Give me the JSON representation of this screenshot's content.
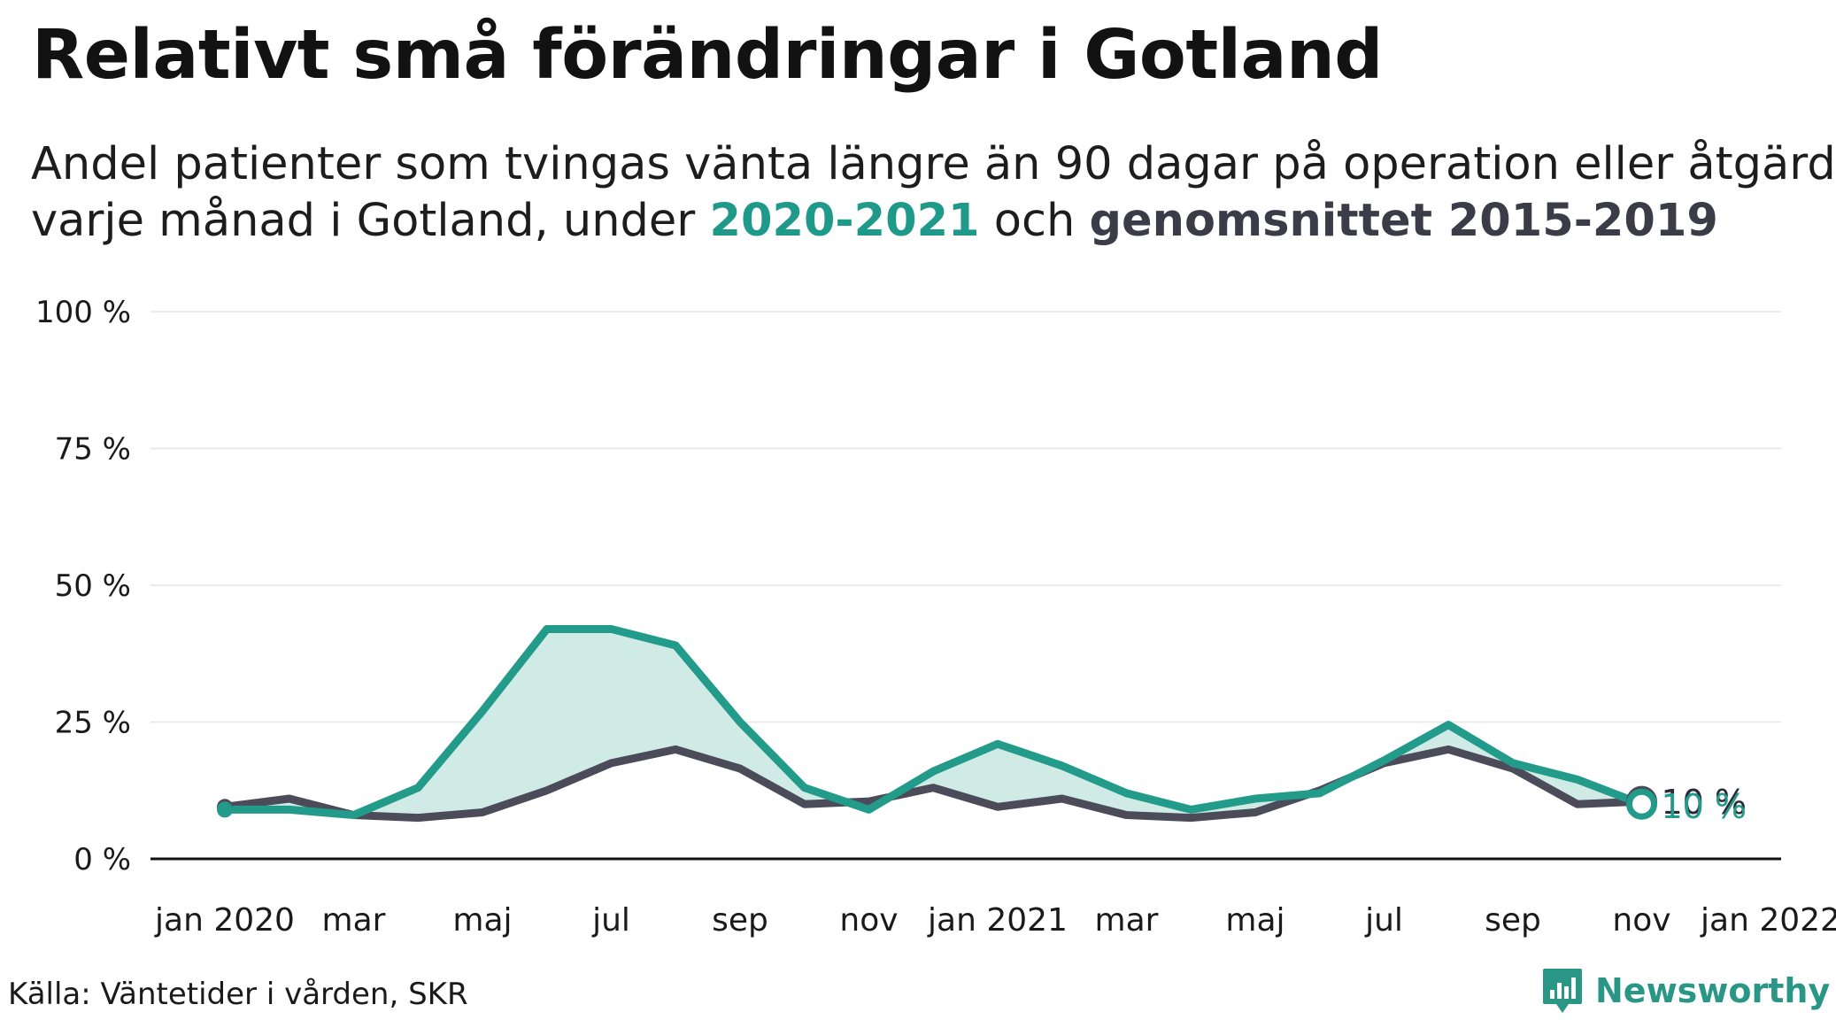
{
  "header": {
    "title": "Relativt små förändringar i Gotland",
    "subtitle_line1": "Andel patienter som tvingas vänta längre än 90 dagar på operation eller åtgärd",
    "subtitle_line2_pre": "varje månad i Gotland, under ",
    "subtitle_highlight_current": "2020-2021",
    "subtitle_line2_mid": " och ",
    "subtitle_highlight_average": "genomsnittet 2015-2019"
  },
  "footer": {
    "source": "Källa: Väntetider i vården, SKR",
    "brand": "Newsworthy"
  },
  "colors": {
    "current": "#229b8a",
    "average": "#4c4b59",
    "area": "#d0ebe6",
    "grid": "#e6e6e6",
    "axis": "#111111"
  },
  "chart_data": {
    "type": "line",
    "x_tick_labels": [
      "jan 2020",
      "mar",
      "maj",
      "jul",
      "sep",
      "nov",
      "jan 2021",
      "mar",
      "maj",
      "jul",
      "sep",
      "nov",
      "jan 2022"
    ],
    "y_tick_labels": [
      "0 %",
      "25 %",
      "50 %",
      "75 %",
      "100 %"
    ],
    "ylim": [
      0,
      100
    ],
    "y_ticks": [
      0,
      25,
      50,
      75,
      100
    ],
    "x": [
      "2020-01",
      "2020-02",
      "2020-03",
      "2020-04",
      "2020-05",
      "2020-06",
      "2020-07",
      "2020-08",
      "2020-09",
      "2020-10",
      "2020-11",
      "2020-12",
      "2021-01",
      "2021-02",
      "2021-03",
      "2021-04",
      "2021-05",
      "2021-06",
      "2021-07",
      "2021-08",
      "2021-09",
      "2021-10",
      "2021-11"
    ],
    "series": [
      {
        "key": "current",
        "values": [
          9,
          9,
          8,
          13,
          27,
          42,
          42,
          39,
          25,
          13,
          9,
          16,
          21,
          17,
          12,
          9,
          11,
          12,
          18,
          24.5,
          17.5,
          14.5,
          10
        ]
      },
      {
        "key": "average",
        "values": [
          9.5,
          11,
          8,
          7.5,
          8.5,
          12.5,
          17.5,
          20,
          16.5,
          10,
          10.5,
          13,
          9.5,
          11,
          8,
          7.5,
          8.5,
          12.5,
          17.5,
          20,
          16.5,
          10,
          10.5
        ]
      }
    ],
    "end_labels": {
      "current": "10 %",
      "average": "10 %"
    },
    "grid": true,
    "legend": "none"
  }
}
